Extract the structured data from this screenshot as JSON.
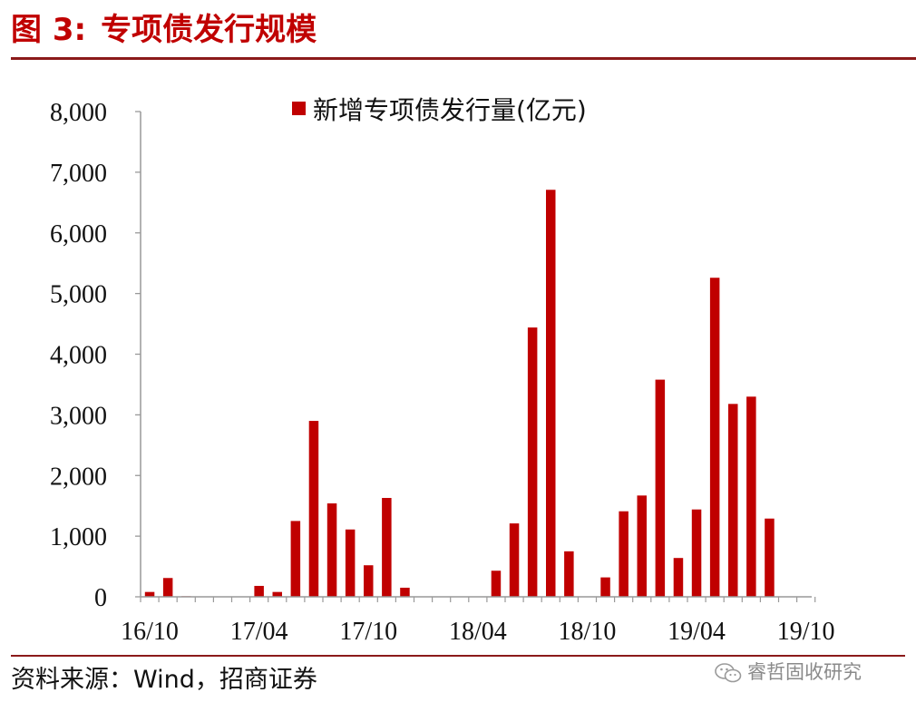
{
  "figure": {
    "label": "图 3:",
    "title": "专项债发行规模"
  },
  "source": "资料来源：Wind，招商证券",
  "watermark": {
    "icon": "wechat-icon",
    "text": "睿哲固收研究"
  },
  "colors": {
    "bar": "#c00000",
    "title": "#c00000",
    "rule": "#8b1a1a",
    "axis": "#999999"
  },
  "chart_data": {
    "type": "bar",
    "title": "",
    "xlabel": "",
    "ylabel": "",
    "ylim": [
      0,
      8000
    ],
    "yticks": [
      "0",
      "1,000",
      "2,000",
      "3,000",
      "4,000",
      "5,000",
      "6,000",
      "7,000",
      "8,000"
    ],
    "ytick_values": [
      0,
      1000,
      2000,
      3000,
      4000,
      5000,
      6000,
      7000,
      8000
    ],
    "grid": false,
    "legend_position": "top-center",
    "xtick_labels": [
      {
        "label": "16/10",
        "index": 0
      },
      {
        "label": "17/04",
        "index": 6
      },
      {
        "label": "17/10",
        "index": 12
      },
      {
        "label": "18/04",
        "index": 18
      },
      {
        "label": "18/10",
        "index": 24
      },
      {
        "label": "19/04",
        "index": 30
      },
      {
        "label": "19/10",
        "index": 36
      }
    ],
    "categories": [
      "16/10",
      "16/11",
      "16/12",
      "17/01",
      "17/02",
      "17/03",
      "17/04",
      "17/05",
      "17/06",
      "17/07",
      "17/08",
      "17/09",
      "17/10",
      "17/11",
      "17/12",
      "18/01",
      "18/02",
      "18/03",
      "18/04",
      "18/05",
      "18/06",
      "18/07",
      "18/08",
      "18/09",
      "18/10",
      "18/11",
      "18/12",
      "19/01",
      "19/02",
      "19/03",
      "19/04",
      "19/05",
      "19/06",
      "19/07",
      "19/08",
      "19/09",
      "19/10"
    ],
    "series": [
      {
        "name": "新增专项债发行量(亿元)",
        "values": [
          80,
          310,
          10,
          0,
          0,
          0,
          180,
          80,
          1250,
          2900,
          1540,
          1110,
          520,
          1630,
          150,
          0,
          0,
          0,
          0,
          430,
          1210,
          4440,
          6710,
          750,
          0,
          320,
          1410,
          1670,
          3580,
          640,
          1440,
          5260,
          3180,
          3300,
          1290,
          0,
          0
        ]
      }
    ]
  }
}
